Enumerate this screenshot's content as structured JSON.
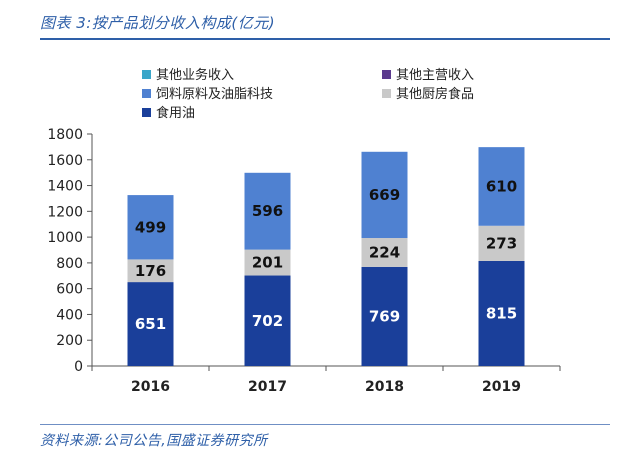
{
  "caption": "图表 3:按产品划分收入构成(亿元)",
  "source": "资料来源:公司公告,国盛证券研究所",
  "chart_data": {
    "type": "bar",
    "stacked": true,
    "categories": [
      "2016",
      "2017",
      "2018",
      "2019"
    ],
    "ylim": [
      0,
      1800
    ],
    "yticks": [
      0,
      200,
      400,
      600,
      800,
      1000,
      1200,
      1400,
      1600,
      1800
    ],
    "grid": false,
    "legend_placement": "top",
    "series": [
      {
        "name": "食用油",
        "values": [
          651,
          702,
          769,
          815
        ],
        "color": "#1a3f9a",
        "label_color": "#ffffff",
        "show_labels": true
      },
      {
        "name": "其他厨房食品",
        "values": [
          176,
          201,
          224,
          273
        ],
        "color": "#c9c9c9",
        "label_color": "#111111",
        "show_labels": true
      },
      {
        "name": "饲料原料及油脂科技",
        "values": [
          499,
          596,
          669,
          610
        ],
        "color": "#4f81d1",
        "label_color": "#111111",
        "show_labels": true
      },
      {
        "name": "其他主营收入",
        "values": [
          0,
          0,
          0,
          0
        ],
        "color": "#5b3a8e",
        "show_labels": false
      },
      {
        "name": "其他业务收入",
        "values": [
          0,
          0,
          0,
          0
        ],
        "color": "#3aa6c9",
        "show_labels": false
      }
    ],
    "legend": [
      {
        "name": "其他业务收入",
        "color": "#3aa6c9"
      },
      {
        "name": "其他主营收入",
        "color": "#5b3a8e"
      },
      {
        "name": "饲料原料及油脂科技",
        "color": "#4f81d1"
      },
      {
        "name": "其他厨房食品",
        "color": "#c9c9c9"
      },
      {
        "name": "食用油",
        "color": "#1a3f9a"
      }
    ]
  }
}
